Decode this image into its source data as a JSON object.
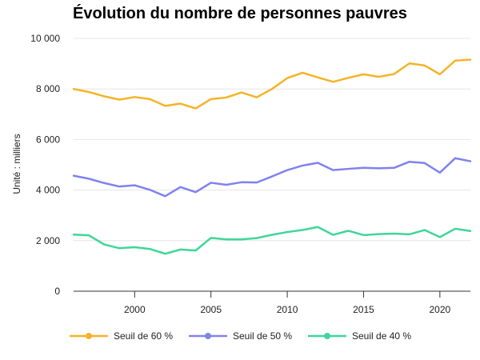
{
  "chart_data": {
    "type": "line",
    "title": "Évolution du nombre de personnes pauvres",
    "ylabel": "Unité : milliers",
    "xlabel": "",
    "ylim": [
      0,
      10000
    ],
    "xlim": [
      1996,
      2022
    ],
    "yticks": [
      0,
      2000,
      4000,
      6000,
      8000,
      10000
    ],
    "ytick_labels": [
      "0",
      "2 000",
      "4 000",
      "6 000",
      "8 000",
      "10 000"
    ],
    "xticks": [
      2000,
      2005,
      2010,
      2015,
      2020
    ],
    "xtick_labels": [
      "2000",
      "2005",
      "2010",
      "2015",
      "2020"
    ],
    "grid": "horizontal",
    "legend_position": "bottom-left",
    "x": [
      1996,
      1997,
      1998,
      1999,
      2000,
      2001,
      2002,
      2003,
      2004,
      2005,
      2006,
      2007,
      2008,
      2009,
      2010,
      2011,
      2012,
      2013,
      2014,
      2015,
      2016,
      2017,
      2018,
      2019,
      2020,
      2021,
      2022
    ],
    "series": [
      {
        "name": "Seuil de 60 %",
        "color": "#f5b327",
        "values": [
          8000,
          7880,
          7710,
          7580,
          7680,
          7600,
          7330,
          7420,
          7230,
          7600,
          7660,
          7860,
          7670,
          8000,
          8430,
          8640,
          8460,
          8280,
          8440,
          8580,
          8480,
          8590,
          9010,
          8930,
          8580,
          9120,
          9160
        ]
      },
      {
        "name": "Seuil de 50 %",
        "color": "#8082ef",
        "values": [
          4570,
          4450,
          4280,
          4140,
          4190,
          4010,
          3760,
          4120,
          3920,
          4290,
          4210,
          4310,
          4300,
          4540,
          4790,
          4970,
          5080,
          4790,
          4840,
          4880,
          4860,
          4880,
          5120,
          5070,
          4690,
          5260,
          5140
        ]
      },
      {
        "name": "Seuil de 40 %",
        "color": "#3fd699",
        "values": [
          2240,
          2210,
          1850,
          1700,
          1740,
          1670,
          1480,
          1650,
          1610,
          2110,
          2050,
          2050,
          2100,
          2230,
          2340,
          2420,
          2540,
          2230,
          2390,
          2220,
          2260,
          2280,
          2250,
          2420,
          2140,
          2470,
          2380
        ]
      }
    ]
  }
}
